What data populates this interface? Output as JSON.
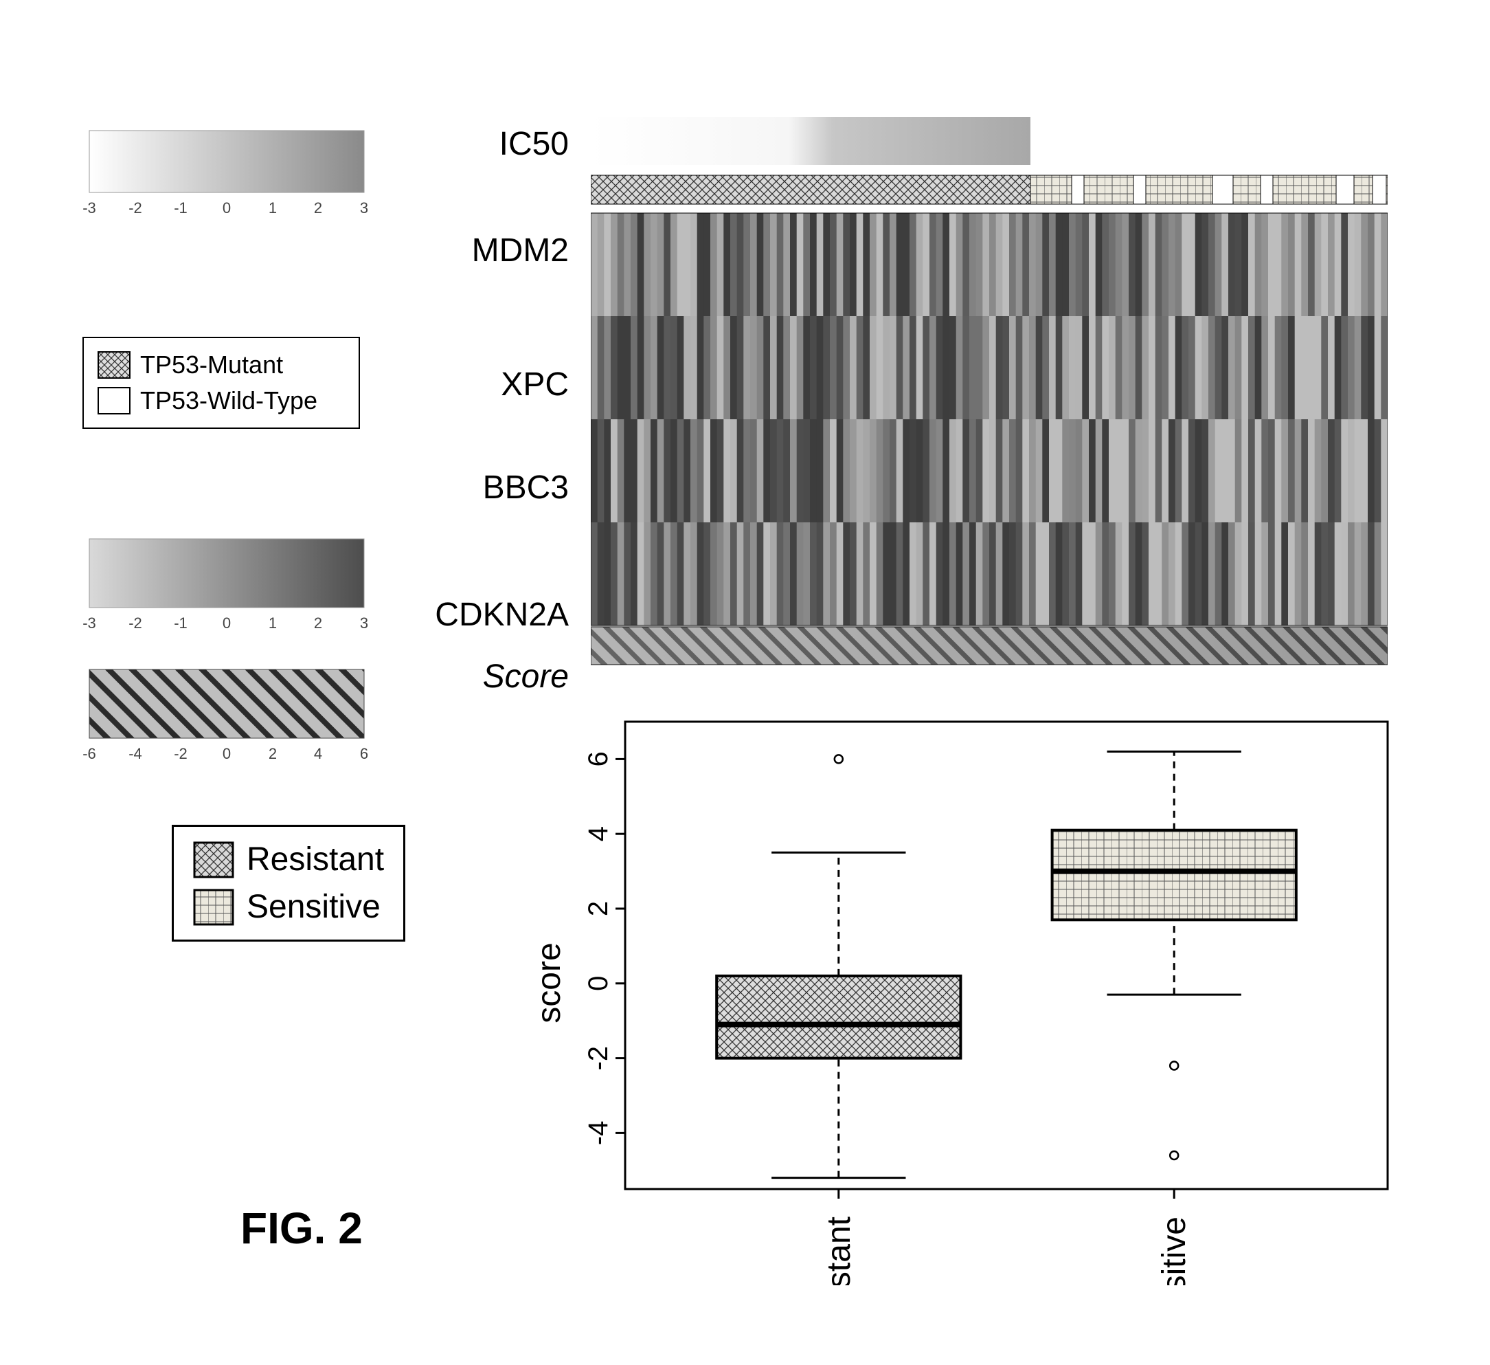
{
  "figure_caption": "FIG. 2",
  "legend_colorbars": {
    "scale1": {
      "ticks": [
        -3,
        -2,
        -1,
        0,
        1,
        2,
        3
      ],
      "gradient_from": "#ffffff",
      "gradient_to": "#8a8a8a",
      "tick_fontsize": 22
    },
    "tp53": {
      "items": [
        "TP53-Mutant",
        "TP53-Wild-Type"
      ],
      "fontsize": 36,
      "swatch_mutant_pattern": "crosshatch",
      "swatch_wild_pattern": "none"
    },
    "scale2": {
      "ticks": [
        -3,
        -2,
        -1,
        0,
        1,
        2,
        3
      ],
      "gradient_from": "#d9d9d9",
      "gradient_to": "#4d4d4d",
      "tick_fontsize": 22
    },
    "scale3": {
      "ticks": [
        -6,
        -4,
        -2,
        0,
        2,
        4,
        6
      ],
      "pattern": "diagonal",
      "bg": "#bfbfbf",
      "tick_fontsize": 22
    }
  },
  "heatmap": {
    "row_labels": [
      "IC50",
      "",
      "MDM2",
      "XPC",
      "BBC3",
      "CDKN2A",
      "Score"
    ],
    "label_fontsize": 48,
    "panel": {
      "total_rows": 4,
      "ncols": 120,
      "bg_ic50": {
        "gradient_from": "#ffffff",
        "gradient_mid": "#c7c7c7",
        "gradient_to": "#b0b0b0",
        "break_at": 0.55
      },
      "tp53_bar": {
        "left_pattern": "crosshatch",
        "right_pattern": "brick",
        "split_at": 0.55,
        "seg_colors_left": "#d9d9d9",
        "seg_colors_right": "#e8e6df",
        "wild_type_gaps": [
          0.58,
          0.66,
          0.76,
          0.82,
          0.92,
          0.97
        ],
        "wild_gap_width": 0.015
      },
      "genes": {
        "ncolseed": 120,
        "shade_min": "#3d3d3d",
        "shade_max": "#bdbdbd"
      },
      "score_bar": {
        "pattern": "diagonal",
        "bg": "#bfbfbf",
        "gradient_from": "#a9a9a9",
        "gradient_to": "#6f6f6f"
      }
    }
  },
  "boxplot": {
    "ylabel": "score",
    "ylabel_fontsize": 48,
    "xticks": [
      "Resistant",
      "Sensitive"
    ],
    "xtick_fontsize": 48,
    "yticks": [
      -4,
      -2,
      0,
      2,
      4,
      6
    ],
    "ytick_fontsize": 40,
    "ylim": [
      -5.5,
      7
    ],
    "axis_color": "#000000",
    "groups": {
      "Resistant": {
        "q1": -2.0,
        "median": -1.1,
        "q3": 0.2,
        "whisker_lo": -5.2,
        "whisker_hi": 3.5,
        "outliers": [
          6.0
        ],
        "fill_pattern": "crosshatch",
        "fill_bg": "#dedede"
      },
      "Sensitive": {
        "q1": 1.7,
        "median": 3.0,
        "q3": 4.1,
        "whisker_lo": -0.3,
        "whisker_hi": 6.2,
        "outliers": [
          -2.2,
          -4.6
        ],
        "fill_pattern": "brick",
        "fill_bg": "#ece9de"
      }
    },
    "box_halfwidth": 0.16,
    "legend": {
      "items": [
        "Resistant",
        "Sensitive"
      ],
      "fontsize": 48
    }
  },
  "palette": {
    "black": "#000000",
    "grid": "#000000",
    "page_bg": "#ffffff",
    "grey_light": "#d9d9d9",
    "grey_mid": "#8a8a8a",
    "grey_dark": "#4d4d4d"
  }
}
